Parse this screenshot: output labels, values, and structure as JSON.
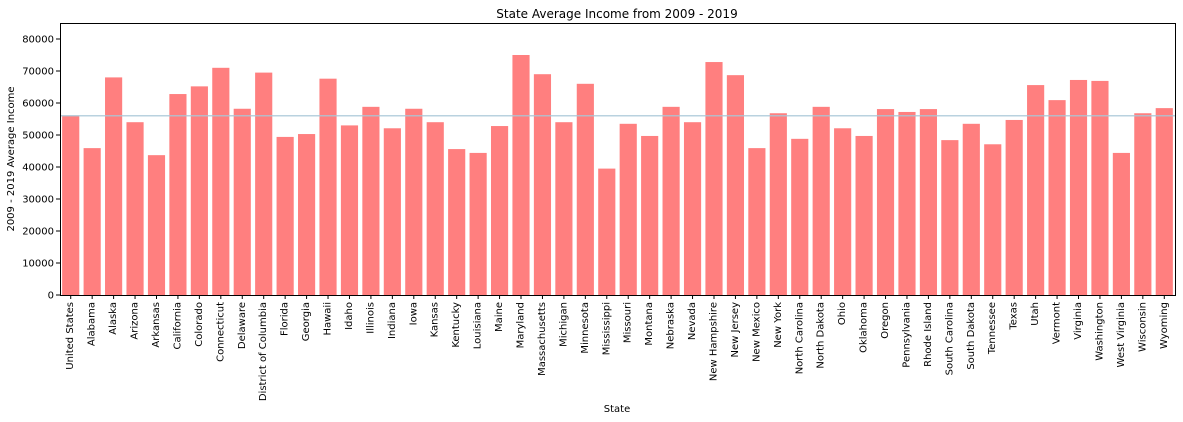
{
  "chart_data": {
    "type": "bar",
    "title": "State Average Income from 2009 - 2019",
    "xlabel": "State",
    "ylabel": "2009 - 2019 Average Income",
    "ylim": [
      0,
      85000
    ],
    "yticks": [
      0,
      10000,
      20000,
      30000,
      40000,
      50000,
      60000,
      70000,
      80000
    ],
    "grid": false,
    "legend": "none",
    "bar_color": "#ff7f7f",
    "reference_line": {
      "value": 56000,
      "color": "#a8c8d8"
    },
    "categories": [
      "United States",
      "Alabama",
      "Alaska",
      "Arizona",
      "Arkansas",
      "California",
      "Colorado",
      "Connecticut",
      "Delaware",
      "District of Columbia",
      "Florida",
      "Georgia",
      "Hawaii",
      "Idaho",
      "Illinois",
      "Indiana",
      "Iowa",
      "Kansas",
      "Kentucky",
      "Louisiana",
      "Maine",
      "Maryland",
      "Massachusetts",
      "Michigan",
      "Minnesota",
      "Mississippi",
      "Missouri",
      "Montana",
      "Nebraska",
      "Nevada",
      "New Hampshire",
      "New Jersey",
      "New Mexico",
      "New York",
      "North Carolina",
      "North Dakota",
      "Ohio",
      "Oklahoma",
      "Oregon",
      "Pennsylvania",
      "Rhode Island",
      "South Carolina",
      "South Dakota",
      "Tennessee",
      "Texas",
      "Utah",
      "Vermont",
      "Virginia",
      "Washington",
      "West Virginia",
      "Wisconsin",
      "Wyoming"
    ],
    "values": [
      56000,
      45900,
      68000,
      54000,
      43700,
      62800,
      65200,
      71000,
      58200,
      69500,
      49400,
      50300,
      67600,
      53000,
      58800,
      52100,
      58200,
      54000,
      45600,
      44400,
      52800,
      75000,
      69000,
      54000,
      66000,
      39500,
      53500,
      49700,
      58800,
      54000,
      72800,
      68700,
      45900,
      56800,
      48800,
      58800,
      52100,
      49700,
      58100,
      57200,
      58100,
      48400,
      53500,
      47100,
      54700,
      65600,
      60900,
      67200,
      66900,
      44400,
      56800,
      58400
    ]
  }
}
